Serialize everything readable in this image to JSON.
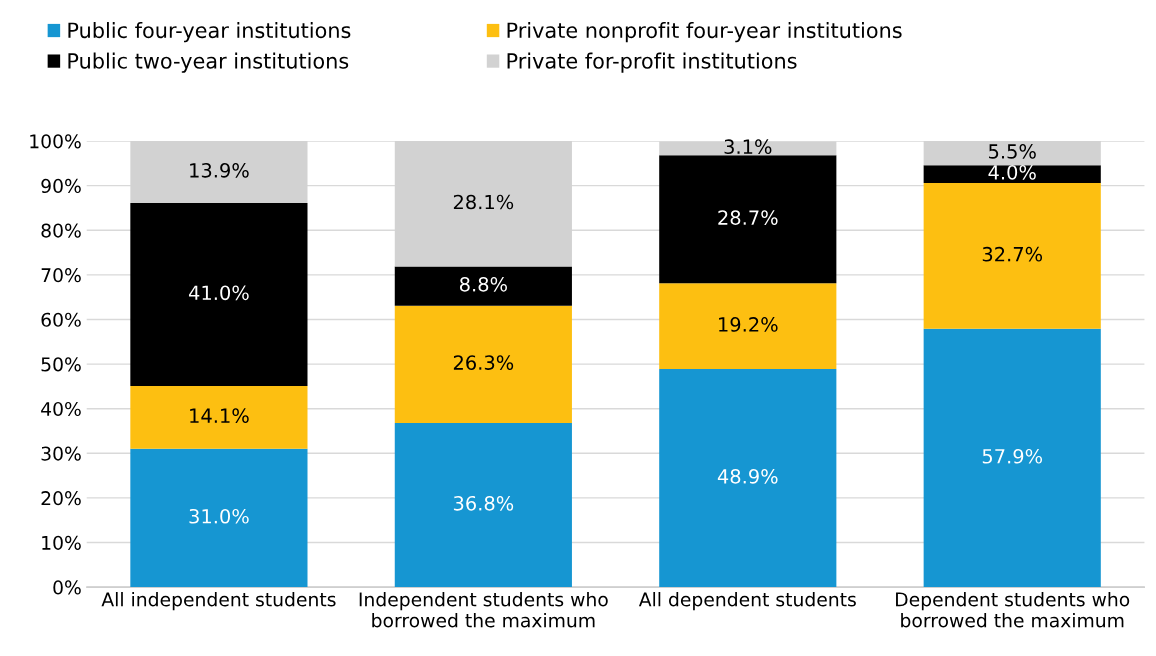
{
  "chart_data": {
    "type": "bar",
    "stacked": true,
    "categories": [
      "All independent students",
      "Independent students who\nborrowed the maximum",
      "All dependent students",
      "Dependent students who\nborrowed the maximum"
    ],
    "series": [
      {
        "name": "Public four-year institutions",
        "color": "#1696d2",
        "values": [
          31.0,
          36.8,
          48.9,
          57.9
        ],
        "value_labels": [
          "31.0%",
          "36.8%",
          "48.9%",
          "57.9%"
        ]
      },
      {
        "name": "Private nonprofit four-year institutions",
        "color": "#fdbf11",
        "values": [
          14.1,
          26.3,
          19.2,
          32.7
        ],
        "value_labels": [
          "14.1%",
          "26.3%",
          "19.2%",
          "32.7%"
        ]
      },
      {
        "name": "Public two-year institutions",
        "color": "#000000",
        "values": [
          41.0,
          8.8,
          28.7,
          4.0
        ],
        "value_labels": [
          "41.0%",
          "8.8%",
          "28.7%",
          "4.0%"
        ]
      },
      {
        "name": "Private for-profit institutions",
        "color": "#d2d2d2",
        "values": [
          13.9,
          28.1,
          3.1,
          5.5
        ],
        "value_labels": [
          "13.9%",
          "28.1%",
          "3.1%",
          "5.5%"
        ]
      }
    ],
    "ylim": [
      0,
      100
    ],
    "yticks": [
      {
        "value": 0,
        "label": "0%"
      },
      {
        "value": 10,
        "label": "10%"
      },
      {
        "value": 20,
        "label": "20%"
      },
      {
        "value": 30,
        "label": "30%"
      },
      {
        "value": 40,
        "label": "40%"
      },
      {
        "value": 50,
        "label": "50%"
      },
      {
        "value": 60,
        "label": "60%"
      },
      {
        "value": 70,
        "label": "70%"
      },
      {
        "value": 80,
        "label": "80%"
      },
      {
        "value": 90,
        "label": "90%"
      },
      {
        "value": 100,
        "label": "100%"
      }
    ],
    "grid": "y",
    "legend": "top left"
  }
}
